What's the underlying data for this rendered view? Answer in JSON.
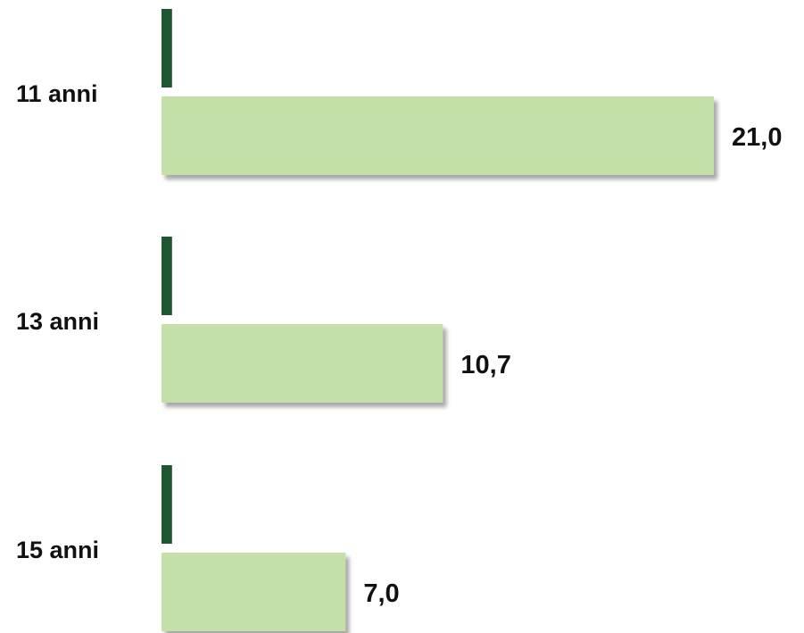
{
  "chart_data": {
    "type": "bar",
    "orientation": "horizontal",
    "categories": [
      "11 anni",
      "13 anni",
      "15 anni"
    ],
    "series": [
      {
        "values": [
          0.4,
          0.4,
          0.4
        ],
        "color": "#1e5631"
      },
      {
        "values": [
          21.0,
          10.7,
          7.0
        ],
        "color": "#c5dfa9",
        "labels": [
          "21,0",
          "10,7",
          "7,0"
        ]
      }
    ],
    "title": "",
    "xlabel": "",
    "ylabel": "",
    "xlim": [
      0,
      21.0
    ],
    "grid": false,
    "legend": "none"
  }
}
